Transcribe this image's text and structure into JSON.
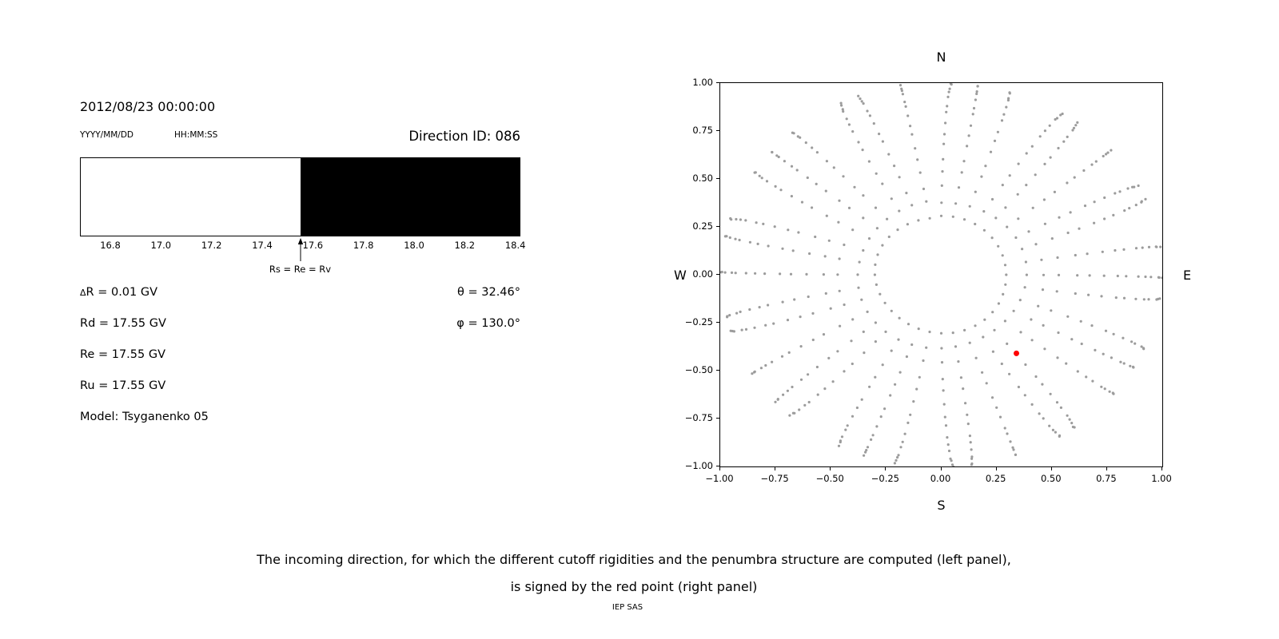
{
  "header": {
    "datetime": "2012/08/23 00:00:00",
    "date_format_label": "YYYY/MM/DD",
    "time_format_label": "HH:MM:SS",
    "direction_id": "Direction ID: 086"
  },
  "params": {
    "delta_r_symbol": "Δ",
    "delta_r_rest": "R = 0.01 GV",
    "rd": "Rd = 17.55 GV",
    "re": "Re = 17.55 GV",
    "ru": "Ru = 17.55 GV",
    "model": "Model: Tsyganenko 05",
    "theta": "θ = 32.46°",
    "phi": "φ = 130.0°"
  },
  "chart_data": [
    {
      "name": "penumbra-band",
      "type": "bar",
      "orientation": "horizontal-band",
      "x_unit": "GV",
      "xlim": [
        16.68,
        18.42
      ],
      "x_ticks": [
        16.8,
        17.0,
        17.2,
        17.4,
        17.6,
        17.8,
        18.0,
        18.2,
        18.4
      ],
      "x_tick_labels": [
        "16.8",
        "17.0",
        "17.2",
        "17.4",
        "17.6",
        "17.8",
        "18.0",
        "18.2",
        "18.4"
      ],
      "segments": [
        {
          "from": 16.68,
          "to": 17.55,
          "color": "#ffffff"
        },
        {
          "from": 17.55,
          "to": 18.42,
          "color": "#000000"
        }
      ],
      "annotation": {
        "x": 17.55,
        "label": "Rs = Re = Rv"
      }
    },
    {
      "name": "incoming-directions-skymap",
      "type": "scatter",
      "xlim": [
        -1.0,
        1.0
      ],
      "ylim": [
        -1.0,
        1.0
      ],
      "x_ticks": [
        -1.0,
        -0.75,
        -0.5,
        -0.25,
        0.0,
        0.25,
        0.5,
        0.75,
        1.0
      ],
      "x_tick_labels": [
        "−1.00",
        "−0.75",
        "−0.50",
        "−0.25",
        "0.00",
        "0.25",
        "0.50",
        "0.75",
        "1.00"
      ],
      "y_ticks": [
        -1.0,
        -0.75,
        -0.5,
        -0.25,
        0.0,
        0.25,
        0.5,
        0.75,
        1.0
      ],
      "y_tick_labels": [
        "−1.00",
        "−0.75",
        "−0.50",
        "−0.25",
        "0.00",
        "0.25",
        "0.50",
        "0.75",
        "1.00"
      ],
      "compass": {
        "top": "N",
        "bottom": "S",
        "left": "W",
        "right": "E"
      },
      "grid": false,
      "gray_directions": {
        "color": "#9c9c9c",
        "marker_radius_px": 1.6,
        "azimuth_start_deg": 0,
        "azimuth_step_deg": 10,
        "azimuth_count": 36,
        "zenith_start_deg": 17.5,
        "zenith_end_deg": 87.5,
        "zenith_step_deg": 5,
        "radius_rule": "r = sin(zenith)"
      },
      "selected_direction": {
        "x": 0.34,
        "y": -0.41,
        "color": "#ff0000",
        "marker_radius_px": 3.5
      }
    }
  ],
  "caption": {
    "line1": "The incoming direction, for which the different cutoff rigidities and the penumbra structure are computed (left panel),",
    "line2": "is signed by the red point (right panel)"
  },
  "footer": "IEP SAS"
}
